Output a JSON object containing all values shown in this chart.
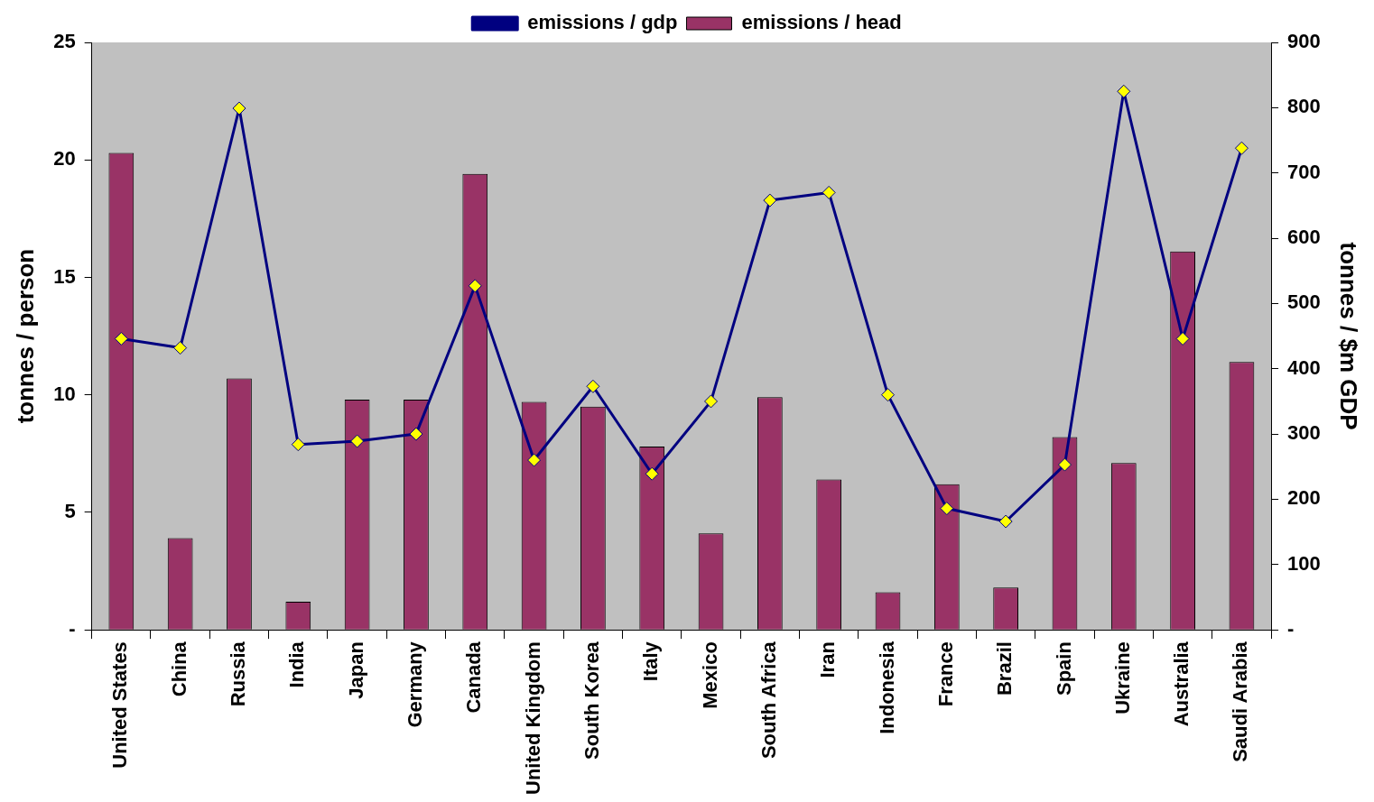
{
  "chart_data": {
    "type": "bar",
    "categories": [
      "United States",
      "China",
      "Russia",
      "India",
      "Japan",
      "Germany",
      "Canada",
      "United Kingdom",
      "South Korea",
      "Italy",
      "Mexico",
      "South Africa",
      "Iran",
      "Indonesia",
      "France",
      "Brazil",
      "Spain",
      "Ukraine",
      "Australia",
      "Saudi Arabia"
    ],
    "series": [
      {
        "name": "emissions / head",
        "color": "#993366",
        "values": [
          20.3,
          3.9,
          10.7,
          1.2,
          9.8,
          9.8,
          19.4,
          9.7,
          9.5,
          7.8,
          4.1,
          9.9,
          6.4,
          1.6,
          6.2,
          1.8,
          8.2,
          7.1,
          16.1,
          11.4
        ]
      },
      {
        "name": "emissions / gdp",
        "type": "line",
        "axis": "y2",
        "color": "#000080",
        "marker": "diamond",
        "values": [
          446,
          432,
          799,
          284,
          289,
          300,
          527,
          260,
          373,
          239,
          350,
          658,
          670,
          360,
          186,
          166,
          253,
          825,
          446,
          738
        ]
      }
    ],
    "ylabel": "tonnes / person",
    "y2label": "tonnes / $m GDP",
    "ylim": [
      0,
      25
    ],
    "yticks": [
      {
        "value": 0,
        "label": "-"
      },
      5,
      10,
      15,
      20,
      25
    ],
    "y2lim": [
      0,
      900
    ],
    "y2ticks": [
      {
        "value": 0,
        "label": "-"
      },
      100,
      200,
      300,
      400,
      500,
      600,
      700,
      800,
      900
    ],
    "grid": false,
    "legend": "top"
  }
}
